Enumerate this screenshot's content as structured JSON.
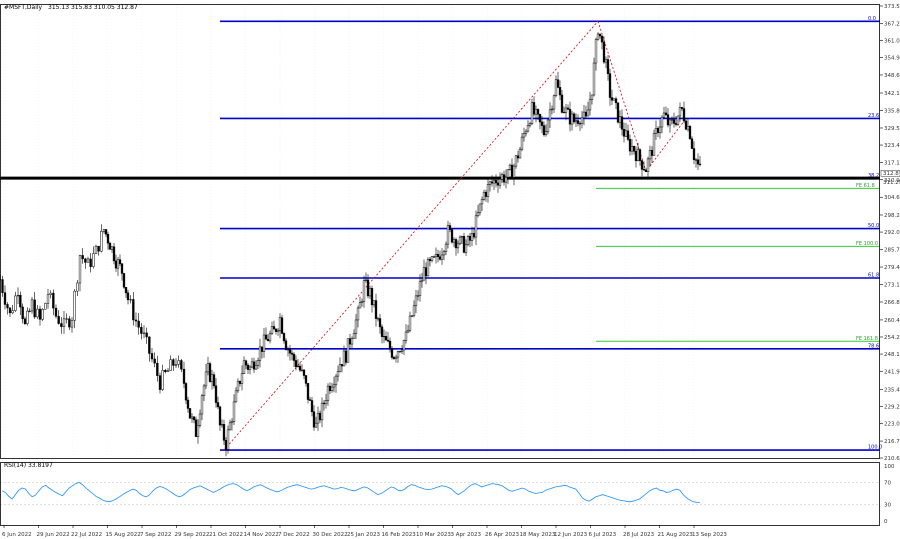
{
  "chart_data": {
    "type": "candlestick",
    "header": {
      "symbol": "#MSFT,Daily",
      "ohlc": "315.13 315.83 310.05 312.87"
    },
    "price_axis": {
      "ylim": [
        210.65,
        373.5
      ],
      "ticks": [
        "373.50",
        "367.20",
        "361.05",
        "354.90",
        "348.65",
        "342.15",
        "335.85",
        "329.55",
        "323.40",
        "317.10",
        "310.90",
        "304.60",
        "298.20",
        "292.05",
        "285.75",
        "279.45",
        "273.15",
        "266.85",
        "260.40",
        "254.25",
        "248.10",
        "241.90",
        "235.40",
        "229.20",
        "223.05",
        "216.75",
        "210.65"
      ],
      "current_price_label": "312.87",
      "current_price": 312.87,
      "support_price_label": "311.29",
      "support_price": 311.29
    },
    "x_axis": {
      "ticks": [
        "6 Jun 2022",
        "29 Jun 2022",
        "22 Jul 2022",
        "15 Aug 2022",
        "7 Sep 2022",
        "29 Sep 2022",
        "21 Oct 2022",
        "14 Nov 2022",
        "7 Dec 2022",
        "30 Dec 2022",
        "25 Jan 2023",
        "16 Feb 2023",
        "10 Mar 2023",
        "3 Apr 2023",
        "26 Apr 2023",
        "18 May 2023",
        "12 Jun 2023",
        "6 Jul 2023",
        "28 Jul 2023",
        "21 Aug 2023",
        "13 Sep 2023"
      ]
    },
    "fib_retracement": {
      "color": "#0000cc",
      "levels": [
        {
          "label": "0.0",
          "price": 368.0
        },
        {
          "label": "23.6",
          "price": 333.0
        },
        {
          "label": "38.2",
          "price": 311.29
        },
        {
          "label": "50.0",
          "price": 293.3
        },
        {
          "label": "61.8",
          "price": 275.5
        },
        {
          "label": "78.6",
          "price": 250.0
        },
        {
          "label": "100.0",
          "price": 213.5
        }
      ]
    },
    "fib_extension": {
      "color": "#33cc33",
      "levels": [
        {
          "label": "FE 61.8",
          "price": 307.8
        },
        {
          "label": "FE 100.0",
          "price": 286.9
        },
        {
          "label": "FE 161.8",
          "price": 252.7
        }
      ]
    },
    "trend_lines": [
      {
        "color": "#dd0000",
        "points": [
          [
            "21 Oct 2022",
            213.5
          ],
          [
            "6 Jul 2023",
            368.0
          ]
        ]
      },
      {
        "color": "#dd0000",
        "points": [
          [
            "6 Jul 2023",
            368.0
          ],
          [
            "28 Jul 2023",
            314.0
          ],
          [
            "21 Aug 2023",
            332.0
          ]
        ]
      }
    ],
    "rsi": {
      "label": "RSI(14) 33.8197",
      "levels": [
        70,
        30
      ],
      "ticks": [
        "100",
        "70",
        "30",
        "0"
      ],
      "line_color": "#1e90ff",
      "values": [
        55,
        52,
        45,
        40,
        48,
        56,
        60,
        58,
        50,
        44,
        47,
        55,
        62,
        65,
        60,
        56,
        52,
        49,
        46,
        53,
        60,
        64,
        68,
        70,
        66,
        60,
        55,
        50,
        45,
        42,
        38,
        36,
        35,
        37,
        40,
        44,
        48,
        52,
        55,
        58,
        56,
        50,
        46,
        44,
        48,
        55,
        60,
        63,
        61,
        58,
        54,
        50,
        46,
        44,
        47,
        52,
        57,
        60,
        62,
        64,
        61,
        58,
        55,
        52,
        55,
        58,
        62,
        65,
        67,
        68,
        66,
        62,
        58,
        55,
        58,
        62,
        64,
        66,
        63,
        60,
        57,
        55,
        53,
        55,
        58,
        61,
        63,
        65,
        66,
        64,
        62,
        60,
        58,
        59,
        61,
        63,
        64,
        62,
        60,
        58,
        59,
        61,
        60,
        58,
        56,
        55,
        57,
        60,
        62,
        60,
        56,
        52,
        48,
        50,
        54,
        58,
        62,
        60,
        56,
        55,
        58,
        63,
        66,
        65,
        62,
        60,
        58,
        57,
        58,
        60,
        62,
        64,
        63,
        61,
        58,
        52,
        48,
        52,
        56,
        62,
        66,
        68,
        65,
        62,
        64,
        66,
        68,
        67,
        66,
        64,
        60,
        56,
        54,
        56,
        58,
        60,
        58,
        54,
        52,
        50,
        51,
        52,
        56,
        58,
        60,
        62,
        63,
        64,
        65,
        62,
        60,
        58,
        50,
        42,
        38,
        36,
        40,
        44,
        46,
        48,
        46,
        44,
        42,
        40,
        38,
        37,
        36,
        35,
        36,
        38,
        40,
        45,
        50,
        55,
        58,
        60,
        56,
        55,
        52,
        53,
        56,
        58,
        56,
        48,
        42,
        38,
        35,
        34,
        33.82
      ]
    },
    "price_path_estimate": [
      [
        0,
        275
      ],
      [
        10,
        262
      ],
      [
        18,
        272
      ],
      [
        25,
        258
      ],
      [
        32,
        266
      ],
      [
        40,
        260
      ],
      [
        48,
        270
      ],
      [
        56,
        262
      ],
      [
        64,
        258
      ],
      [
        72,
        262
      ],
      [
        80,
        284
      ],
      [
        88,
        280
      ],
      [
        96,
        285
      ],
      [
        104,
        293
      ],
      [
        110,
        288
      ],
      [
        116,
        282
      ],
      [
        122,
        278
      ],
      [
        128,
        268
      ],
      [
        136,
        260
      ],
      [
        144,
        254
      ],
      [
        152,
        246
      ],
      [
        160,
        238
      ],
      [
        168,
        242
      ],
      [
        176,
        246
      ],
      [
        184,
        238
      ],
      [
        190,
        226
      ],
      [
        196,
        220
      ],
      [
        202,
        234
      ],
      [
        208,
        242
      ],
      [
        214,
        238
      ],
      [
        220,
        222
      ],
      [
        226,
        216
      ],
      [
        232,
        226
      ],
      [
        238,
        236
      ],
      [
        244,
        245
      ],
      [
        250,
        243
      ],
      [
        256,
        247
      ],
      [
        262,
        251
      ],
      [
        268,
        254
      ],
      [
        274,
        256
      ],
      [
        280,
        261
      ],
      [
        286,
        252
      ],
      [
        292,
        247
      ],
      [
        298,
        244
      ],
      [
        304,
        239
      ],
      [
        310,
        230
      ],
      [
        316,
        222
      ],
      [
        322,
        228
      ],
      [
        328,
        236
      ],
      [
        334,
        240
      ],
      [
        340,
        245
      ],
      [
        346,
        248
      ],
      [
        352,
        256
      ],
      [
        358,
        262
      ],
      [
        364,
        273
      ],
      [
        370,
        270
      ],
      [
        376,
        262
      ],
      [
        382,
        254
      ],
      [
        388,
        251
      ],
      [
        394,
        248
      ],
      [
        400,
        251
      ],
      [
        406,
        254
      ],
      [
        412,
        262
      ],
      [
        418,
        270
      ],
      [
        424,
        278
      ],
      [
        430,
        280
      ],
      [
        436,
        282
      ],
      [
        442,
        286
      ],
      [
        448,
        292
      ],
      [
        454,
        290
      ],
      [
        460,
        288
      ],
      [
        466,
        287
      ],
      [
        472,
        290
      ],
      [
        478,
        298
      ],
      [
        484,
        306
      ],
      [
        490,
        309
      ],
      [
        496,
        311
      ],
      [
        502,
        312
      ],
      [
        508,
        312
      ],
      [
        514,
        316
      ],
      [
        520,
        322
      ],
      [
        526,
        330
      ],
      [
        532,
        336
      ],
      [
        538,
        332
      ],
      [
        544,
        328
      ],
      [
        550,
        336
      ],
      [
        556,
        346
      ],
      [
        562,
        338
      ],
      [
        568,
        334
      ],
      [
        574,
        332
      ],
      [
        580,
        334
      ],
      [
        586,
        332
      ],
      [
        592,
        344
      ],
      [
        598,
        366
      ],
      [
        604,
        356
      ],
      [
        610,
        342
      ],
      [
        616,
        336
      ],
      [
        622,
        330
      ],
      [
        628,
        324
      ],
      [
        634,
        322
      ],
      [
        640,
        318
      ],
      [
        646,
        315
      ],
      [
        652,
        322
      ],
      [
        658,
        330
      ],
      [
        664,
        334
      ],
      [
        670,
        330
      ],
      [
        676,
        333
      ],
      [
        682,
        336
      ],
      [
        686,
        332
      ],
      [
        690,
        328
      ],
      [
        694,
        320
      ],
      [
        698,
        316
      ],
      [
        702,
        312.87
      ]
    ]
  }
}
